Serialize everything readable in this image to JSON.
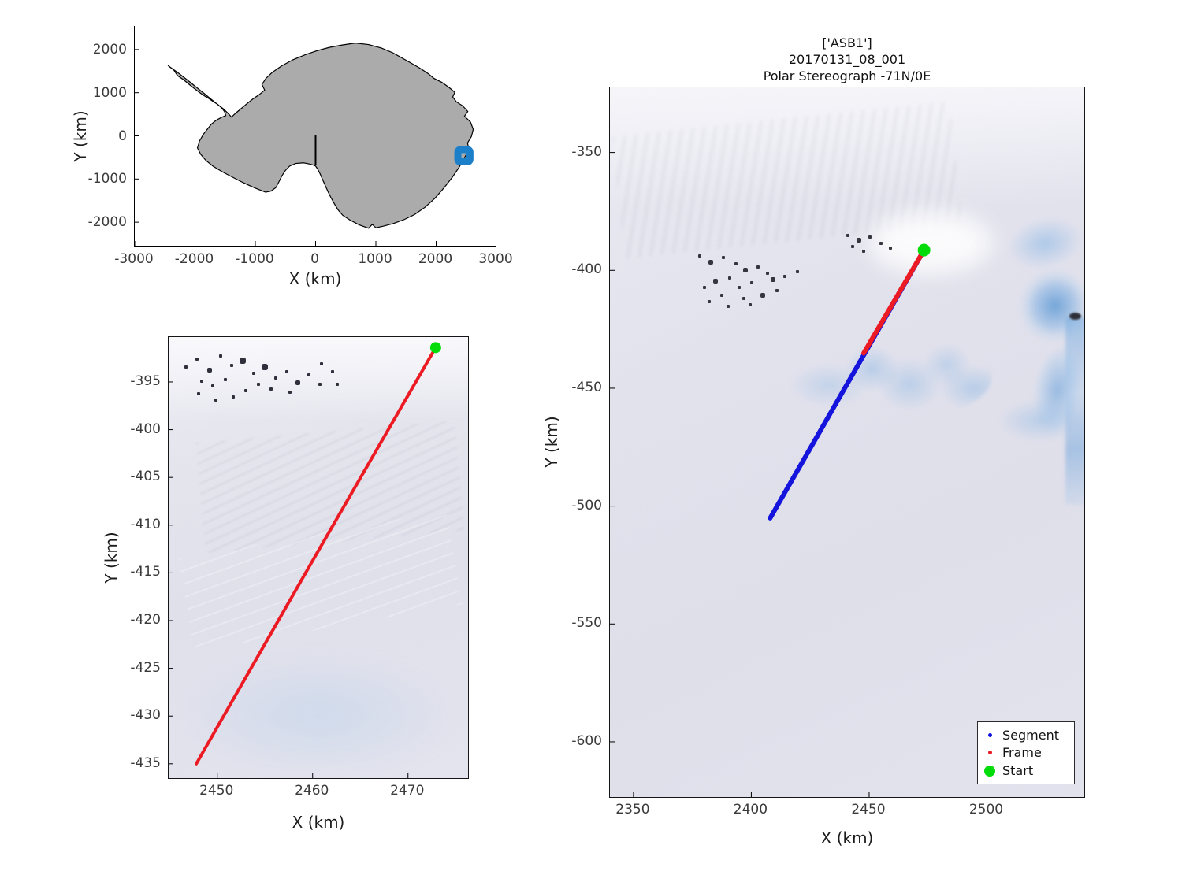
{
  "colors": {
    "segment_blue": "#1414dc",
    "frame_red": "#ec1b23",
    "start_green": "#00dc0a",
    "map_marker_blue": "#1c7fc9",
    "continent_gray": "#ababab",
    "coast_black": "#000000",
    "tick_text": "#3a3a3a"
  },
  "main_title": {
    "line1": "['ASB1']",
    "line2": "20170131_08_001",
    "line3": "Polar Stereograph -71N/0E"
  },
  "axes": {
    "overview": {
      "xlabel": "X (km)",
      "ylabel": "Y (km)"
    },
    "frame": {
      "xlabel": "X (km)",
      "ylabel": "Y (km)"
    },
    "main": {
      "xlabel": "X (km)",
      "ylabel": "Y (km)"
    }
  },
  "legend": {
    "position": "southeast",
    "items": [
      {
        "label": "Segment",
        "color": "segment_blue",
        "size": 5
      },
      {
        "label": "Frame",
        "color": "frame_red",
        "size": 5
      },
      {
        "label": "Start",
        "color": "start_green",
        "size": 14
      }
    ]
  },
  "chart_data": [
    {
      "type": "line",
      "name": "antarctica-overview-map",
      "background": "map-outline",
      "xlabel": "X (km)",
      "ylabel": "Y (km)",
      "xlim": [
        -3000,
        3000
      ],
      "ylim": [
        -2545,
        2545
      ],
      "x_ticks": [
        -3000,
        -2000,
        -1000,
        0,
        1000,
        2000,
        3000
      ],
      "y_ticks": [
        -2000,
        -1000,
        0,
        1000,
        2000
      ],
      "grid": false,
      "series": [
        {
          "name": "antarctica-coastline",
          "type": "polygon",
          "color": "coast_black",
          "fill": "continent_gray",
          "width": 1.2,
          "points": [
            [
              -2450,
              1630
            ],
            [
              -2350,
              1520
            ],
            [
              -2290,
              1395
            ],
            [
              -2190,
              1300
            ],
            [
              -2100,
              1195
            ],
            [
              -2020,
              1105
            ],
            [
              -1930,
              1010
            ],
            [
              -1850,
              930
            ],
            [
              -1770,
              865
            ],
            [
              -1700,
              795
            ],
            [
              -1620,
              725
            ],
            [
              -1560,
              650
            ],
            [
              -1510,
              560
            ],
            [
              -1490,
              470
            ],
            [
              -1560,
              430
            ],
            [
              -1650,
              360
            ],
            [
              -1730,
              270
            ],
            [
              -1790,
              165
            ],
            [
              -1860,
              40
            ],
            [
              -1925,
              -115
            ],
            [
              -1960,
              -280
            ],
            [
              -1905,
              -430
            ],
            [
              -1820,
              -570
            ],
            [
              -1700,
              -705
            ],
            [
              -1545,
              -835
            ],
            [
              -1380,
              -955
            ],
            [
              -1200,
              -1085
            ],
            [
              -1010,
              -1205
            ],
            [
              -830,
              -1305
            ],
            [
              -740,
              -1280
            ],
            [
              -660,
              -1200
            ],
            [
              -610,
              -1070
            ],
            [
              -560,
              -930
            ],
            [
              -500,
              -800
            ],
            [
              -430,
              -700
            ],
            [
              -330,
              -640
            ],
            [
              -200,
              -625
            ],
            [
              -90,
              -655
            ],
            [
              -30,
              -680
            ],
            [
              0,
              -700
            ],
            [
              30,
              -760
            ],
            [
              75,
              -880
            ],
            [
              115,
              -1010
            ],
            [
              160,
              -1150
            ],
            [
              205,
              -1290
            ],
            [
              255,
              -1430
            ],
            [
              310,
              -1570
            ],
            [
              370,
              -1710
            ],
            [
              450,
              -1840
            ],
            [
              570,
              -1950
            ],
            [
              720,
              -2060
            ],
            [
              880,
              -2140
            ],
            [
              940,
              -2050
            ],
            [
              1000,
              -2130
            ],
            [
              1130,
              -2090
            ],
            [
              1290,
              -2030
            ],
            [
              1460,
              -1945
            ],
            [
              1640,
              -1825
            ],
            [
              1815,
              -1655
            ],
            [
              1980,
              -1445
            ],
            [
              2130,
              -1205
            ],
            [
              2265,
              -965
            ],
            [
              2380,
              -730
            ],
            [
              2465,
              -520
            ],
            [
              2545,
              -315
            ],
            [
              2520,
              -165
            ],
            [
              2585,
              -15
            ],
            [
              2615,
              150
            ],
            [
              2570,
              320
            ],
            [
              2470,
              455
            ],
            [
              2525,
              565
            ],
            [
              2440,
              695
            ],
            [
              2335,
              790
            ],
            [
              2275,
              900
            ],
            [
              2310,
              1010
            ],
            [
              2215,
              1120
            ],
            [
              2095,
              1240
            ],
            [
              1965,
              1330
            ],
            [
              1870,
              1440
            ],
            [
              1740,
              1560
            ],
            [
              1590,
              1680
            ],
            [
              1440,
              1800
            ],
            [
              1280,
              1925
            ],
            [
              1090,
              2035
            ],
            [
              880,
              2115
            ],
            [
              660,
              2150
            ],
            [
              440,
              2105
            ],
            [
              230,
              2050
            ],
            [
              30,
              1975
            ],
            [
              -170,
              1880
            ],
            [
              -380,
              1760
            ],
            [
              -570,
              1615
            ],
            [
              -720,
              1470
            ],
            [
              -825,
              1330
            ],
            [
              -890,
              1190
            ],
            [
              -845,
              1060
            ],
            [
              -935,
              955
            ],
            [
              -1040,
              855
            ],
            [
              -1140,
              745
            ],
            [
              -1240,
              625
            ],
            [
              -1330,
              520
            ],
            [
              -1395,
              435
            ],
            [
              -1455,
              525
            ],
            [
              -1525,
              620
            ],
            [
              -1605,
              705
            ],
            [
              -1685,
              795
            ],
            [
              -1765,
              885
            ],
            [
              -1855,
              990
            ],
            [
              -1955,
              1100
            ],
            [
              -2065,
              1225
            ],
            [
              -2175,
              1345
            ],
            [
              -2285,
              1465
            ],
            [
              -2390,
              1570
            ]
          ]
        },
        {
          "name": "meridian-reference-line",
          "type": "line",
          "color": "coast_black",
          "width": 2,
          "points": [
            [
              0,
              0
            ],
            [
              0,
              -660
            ]
          ]
        },
        {
          "name": "study-area-marker",
          "type": "box",
          "color": "map_marker_blue",
          "width": 9,
          "bounds": [
            2360,
            -600,
            2560,
            -320
          ]
        }
      ]
    },
    {
      "type": "line",
      "name": "frame-detail-map",
      "background": "satellite-imagery",
      "xlabel": "X (km)",
      "ylabel": "Y (km)",
      "xlim": [
        2444.9,
        2476.3
      ],
      "ylim": [
        -436.5,
        -390.3
      ],
      "x_ticks": [
        2450,
        2460,
        2470
      ],
      "y_ticks": [
        -435,
        -430,
        -425,
        -420,
        -415,
        -410,
        -405,
        -400,
        -395
      ],
      "grid": false,
      "series": [
        {
          "name": "Frame",
          "type": "line",
          "color": "frame_red",
          "width": 4,
          "points": [
            [
              2447.8,
              -435.0
            ],
            [
              2460.3,
              -413.2
            ],
            [
              2472.9,
              -391.4
            ]
          ]
        },
        {
          "name": "Start",
          "type": "point",
          "color": "start_green",
          "radius": 7,
          "points": [
            [
              2472.9,
              -391.4
            ]
          ]
        }
      ]
    },
    {
      "type": "line",
      "name": "main-satellite-map",
      "background": "satellite-imagery",
      "title_lines": [
        "['ASB1']",
        "20170131_08_001",
        "Polar Stereograph -71N/0E"
      ],
      "xlabel": "X (km)",
      "ylabel": "Y (km)",
      "xlim": [
        2340,
        2541.3
      ],
      "ylim": [
        -623.4,
        -322.4
      ],
      "x_ticks": [
        2350,
        2400,
        2450,
        2500
      ],
      "y_ticks": [
        -600,
        -550,
        -500,
        -450,
        -400,
        -350
      ],
      "grid": false,
      "legend_entries": [
        "Segment",
        "Frame",
        "Start"
      ],
      "series": [
        {
          "name": "Segment",
          "type": "line",
          "color": "segment_blue",
          "width": 6,
          "points": [
            [
              2408.0,
              -505.1
            ],
            [
              2473.3,
              -391.4
            ]
          ]
        },
        {
          "name": "Frame",
          "type": "line",
          "color": "frame_red",
          "width": 6,
          "points": [
            [
              2447.7,
              -435.1
            ],
            [
              2473.3,
              -391.4
            ]
          ]
        },
        {
          "name": "Start",
          "type": "point",
          "color": "start_green",
          "radius": 8,
          "points": [
            [
              2473.3,
              -391.4
            ]
          ]
        }
      ]
    }
  ]
}
